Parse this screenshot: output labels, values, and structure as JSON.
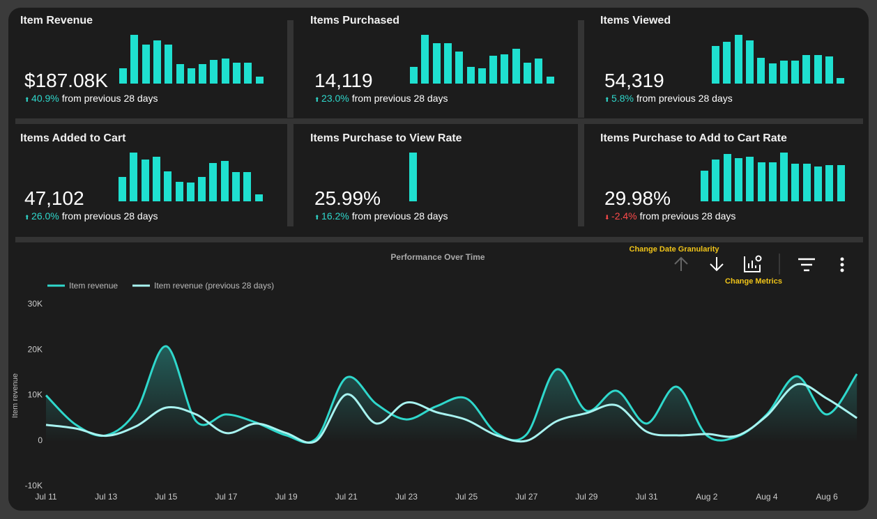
{
  "cards": [
    {
      "title": "Item Revenue",
      "value": "$187.08K",
      "change": "40.9%",
      "change_text": "from previous 28 days",
      "direction": "up",
      "bars": [
        22,
        70,
        56,
        62,
        56,
        28,
        22,
        28,
        34,
        36,
        30,
        30,
        10
      ]
    },
    {
      "title": "Items Purchased",
      "value": "14,119",
      "change": "23.0%",
      "change_text": "from previous 28 days",
      "direction": "up",
      "bars": [
        24,
        70,
        58,
        58,
        46,
        24,
        22,
        40,
        42,
        50,
        30,
        36,
        10
      ]
    },
    {
      "title": "Items Viewed",
      "value": "54,319",
      "change": "5.8%",
      "change_text": "from previous 28 days",
      "direction": "up",
      "bars": [
        52,
        58,
        68,
        60,
        36,
        28,
        32,
        32,
        40,
        40,
        38,
        8
      ]
    },
    {
      "title": "Items Added to Cart",
      "value": "47,102",
      "change": "26.0%",
      "change_text": "from previous 28 days",
      "direction": "up",
      "bars": [
        35,
        70,
        60,
        64,
        43,
        28,
        27,
        35,
        55,
        58,
        42,
        42,
        10
      ]
    },
    {
      "title": "Items Purchase to View Rate",
      "value": "25.99%",
      "change": "16.2%",
      "change_text": "from previous 28 days",
      "direction": "up",
      "bars": [
        70
      ]
    },
    {
      "title": "Items Purchase to Add to Cart Rate",
      "value": "29.98%",
      "change": "-2.4%",
      "change_text": "from previous 28 days",
      "direction": "down",
      "bars": [
        44,
        60,
        68,
        62,
        64,
        56,
        56,
        70,
        54,
        54,
        50,
        52,
        52
      ]
    }
  ],
  "toolbar": {
    "granularity_tooltip": "Change Date Granularity",
    "metrics_tooltip": "Change Metrics"
  },
  "chart_data": {
    "type": "line",
    "title": "Performance Over Time",
    "y_label": "Item revenue",
    "categories": [
      "Jul 11",
      null,
      "Jul 13",
      null,
      "Jul 15",
      null,
      "Jul 17",
      null,
      "Jul 19",
      null,
      "Jul 21",
      null,
      "Jul 23",
      null,
      "Jul 25",
      null,
      "Jul 27",
      null,
      "Jul 29",
      null,
      "Jul 31",
      null,
      "Aug 2",
      null,
      "Aug 4",
      null,
      "Aug 6",
      null
    ],
    "series": [
      {
        "name": "Item revenue",
        "color": "#2fd8cc",
        "values": [
          10000,
          3500,
          1200,
          6500,
          20800,
          4300,
          5800,
          4000,
          1200,
          500,
          13900,
          8100,
          4700,
          7600,
          9300,
          1700,
          1400,
          15700,
          6600,
          11000,
          3800,
          11900,
          1200,
          900,
          5800,
          14200,
          5800,
          14700
        ]
      },
      {
        "name": "Item revenue (previous 28 days)",
        "color": "#a8f3f0",
        "values": [
          3500,
          2700,
          1100,
          3200,
          7300,
          5800,
          1700,
          3800,
          1700,
          0,
          10200,
          3800,
          8400,
          6300,
          4600,
          1200,
          0,
          4300,
          6100,
          7800,
          2000,
          1200,
          1500,
          1100,
          5500,
          12400,
          9300,
          5000
        ]
      }
    ],
    "ylim": [
      -10000,
      30000
    ],
    "yticks": [
      {
        "value": -10000,
        "label": "-10K"
      },
      0,
      {
        "value": 10000,
        "label": "10K"
      },
      {
        "value": 20000,
        "label": "20K"
      },
      {
        "value": 30000,
        "label": "30K"
      }
    ],
    "legend": "top-left"
  }
}
